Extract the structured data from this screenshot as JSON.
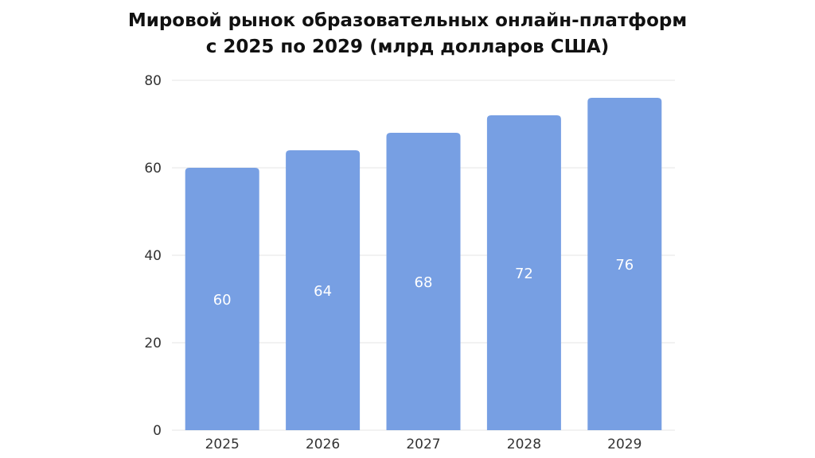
{
  "chart_data": {
    "type": "bar",
    "title_lines": [
      "Мировой рынок образовательных онлайн-платформ",
      "с 2025 по 2029 (млрд долларов США)"
    ],
    "categories": [
      "2025",
      "2026",
      "2027",
      "2028",
      "2029"
    ],
    "values": [
      60,
      64,
      68,
      72,
      76
    ],
    "value_labels": [
      "60",
      "64",
      "68",
      "72",
      "76"
    ],
    "y_ticks": [
      0,
      20,
      40,
      60,
      80
    ],
    "y_tick_labels": [
      "0",
      "20",
      "40",
      "60",
      "80"
    ],
    "ylim": [
      0,
      80
    ],
    "grid": true,
    "legend": "none",
    "bar_color": "#779FE3",
    "grid_color": "#E6E6E6"
  }
}
